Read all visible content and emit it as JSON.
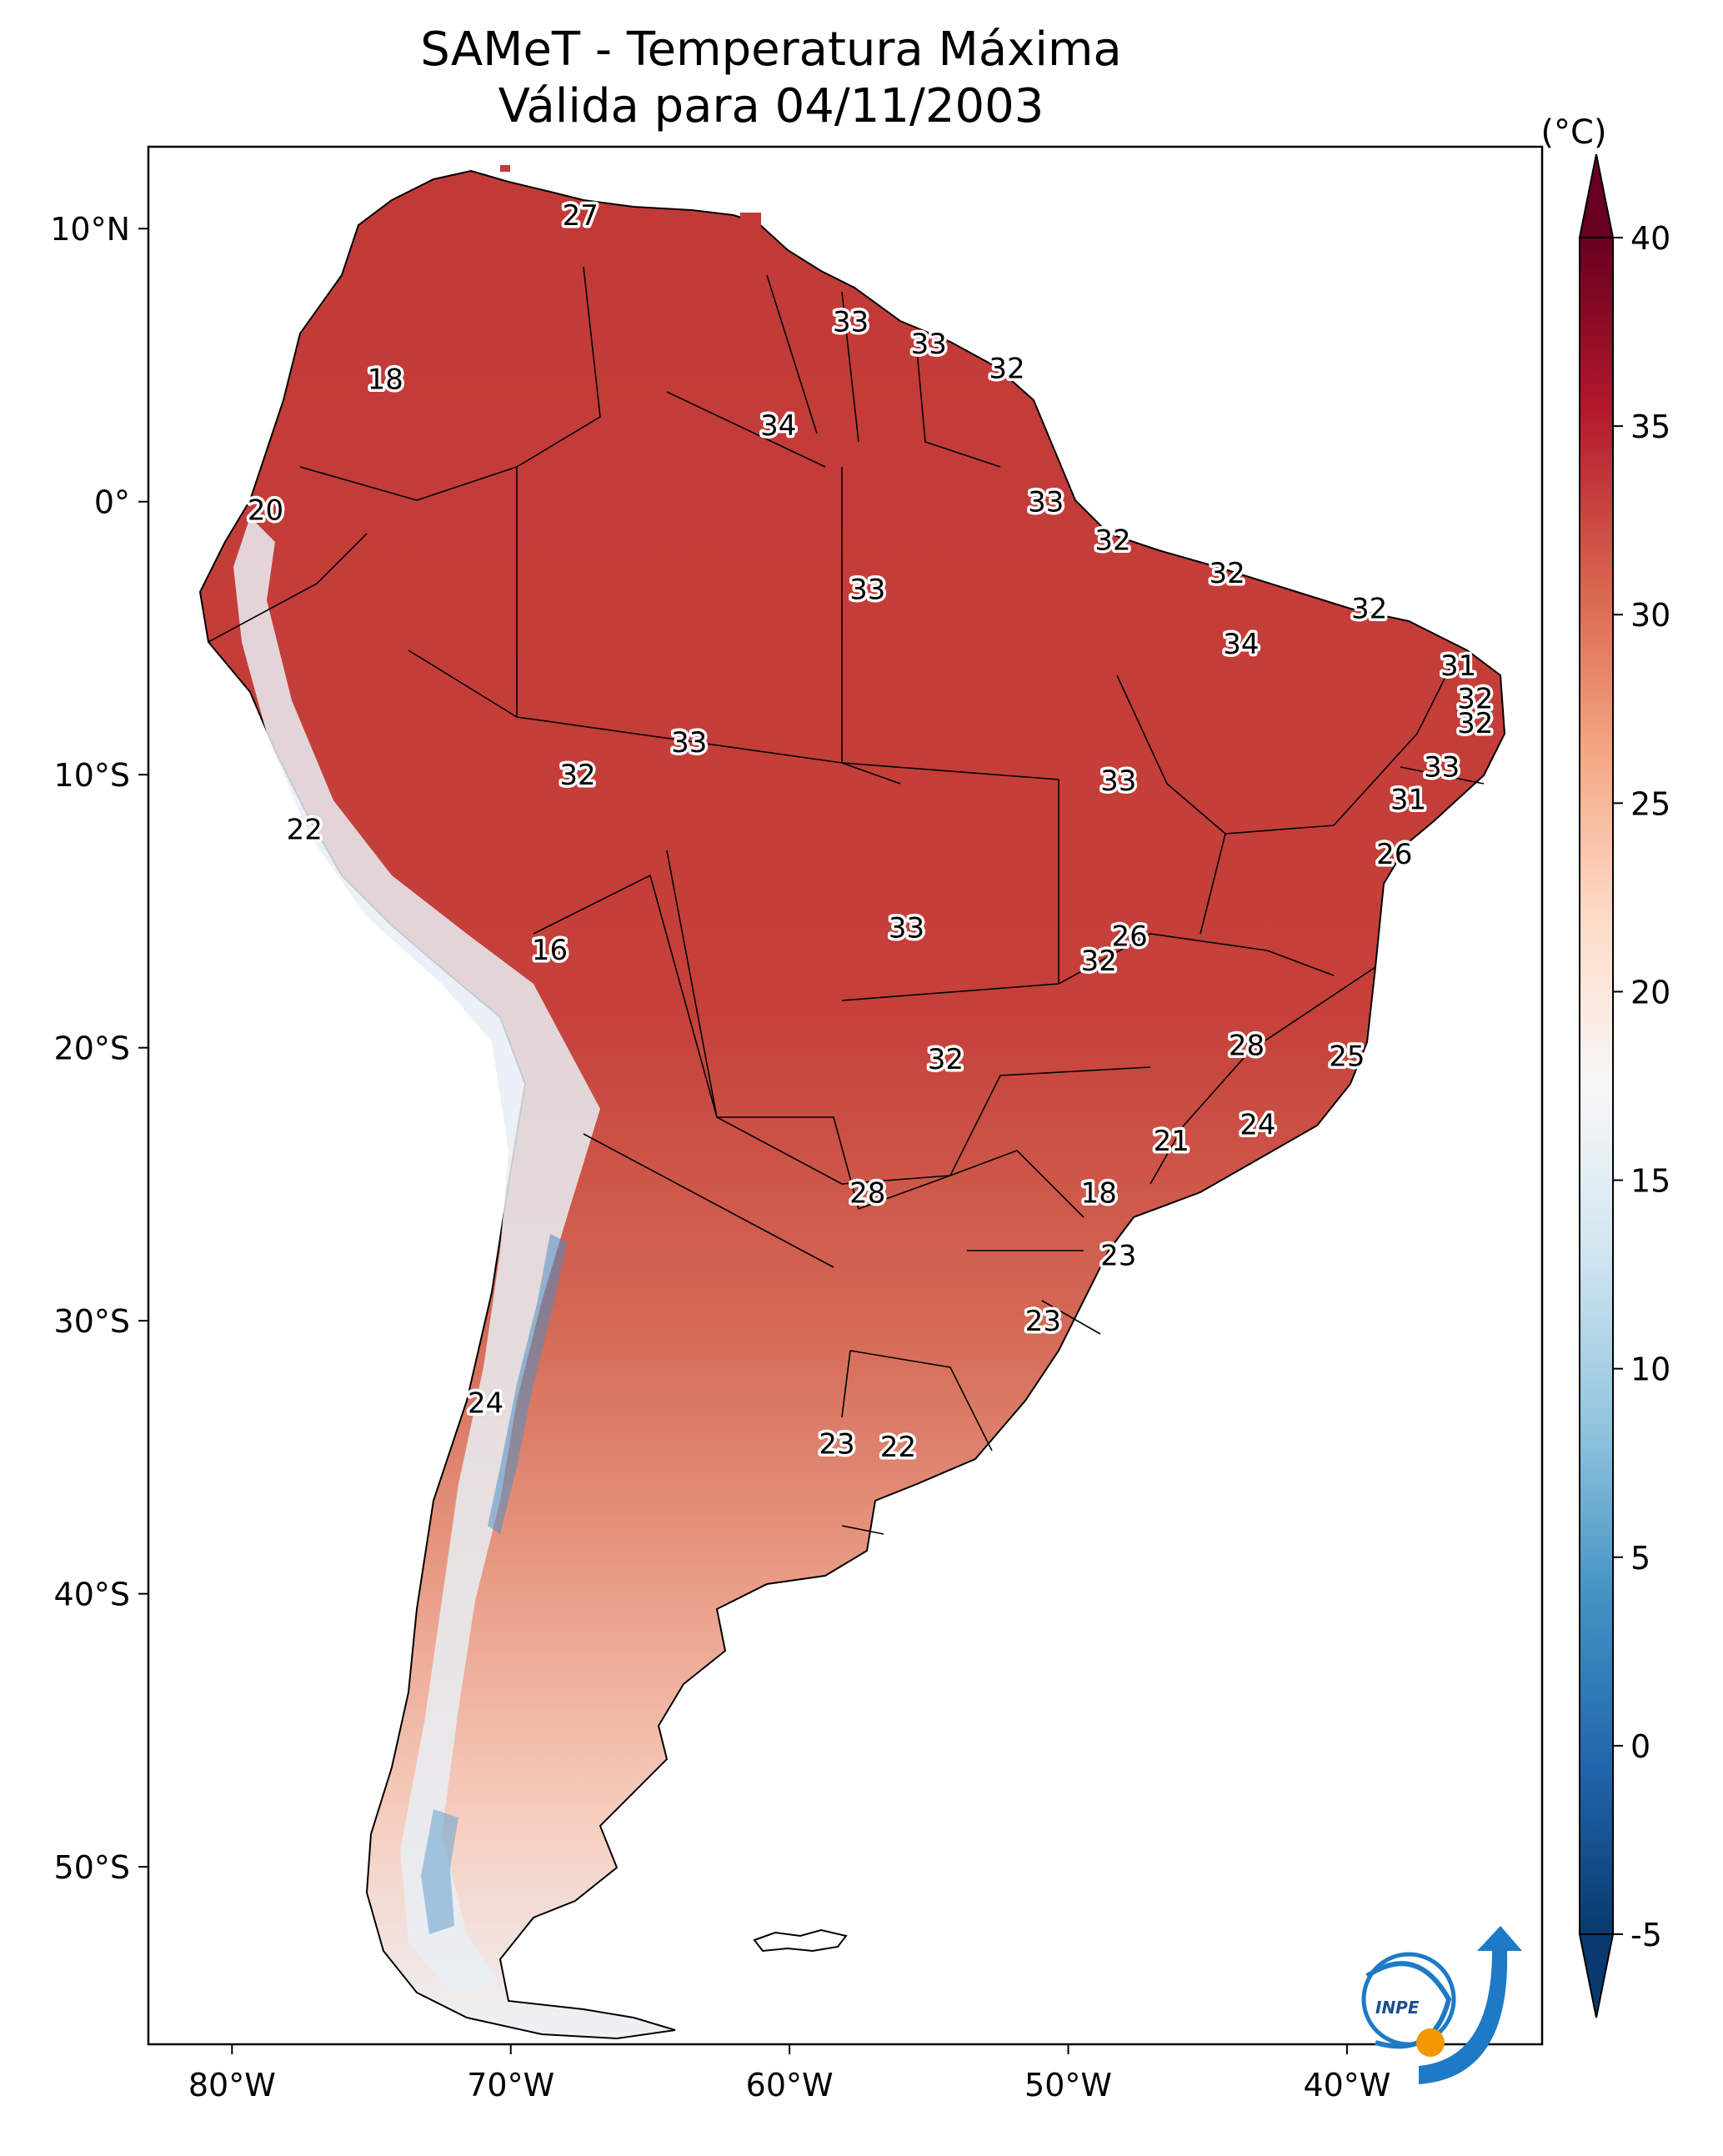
{
  "title": {
    "line1": "SAMeT - Temperatura Máxima",
    "line2": "Válida para 04/11/2003"
  },
  "map": {
    "lon_ticks": [
      "80°W",
      "70°W",
      "60°W",
      "50°W",
      "40°W"
    ],
    "lat_ticks": [
      "10°N",
      "0°",
      "10°S",
      "20°S",
      "30°S",
      "40°S",
      "50°S"
    ],
    "lon_values": [
      -80,
      -70,
      -60,
      -50,
      -40
    ],
    "lat_values": [
      10,
      0,
      -10,
      -20,
      -30,
      -40,
      -50
    ],
    "extent": {
      "lon_min": -83,
      "lon_max": -33,
      "lat_min": -56.5,
      "lat_max": 13
    }
  },
  "colorbar": {
    "unit": "(°C)",
    "ticks": [
      "40",
      "35",
      "30",
      "25",
      "20",
      "15",
      "10",
      "5",
      "0",
      "-5"
    ],
    "tick_values": [
      40,
      35,
      30,
      25,
      20,
      15,
      10,
      5,
      0,
      -5
    ],
    "range": [
      -5,
      40
    ],
    "colors": [
      "#083a6e",
      "#2166ac",
      "#4393c3",
      "#92c5de",
      "#d1e5f0",
      "#f7f7f7",
      "#fddbc7",
      "#f4a582",
      "#d6604d",
      "#b2182b",
      "#67001f"
    ]
  },
  "temperature_labels": [
    {
      "text": "27",
      "lon": -67.5,
      "lat": 10.5
    },
    {
      "text": "33",
      "lon": -57.8,
      "lat": 6.6
    },
    {
      "text": "33",
      "lon": -55.0,
      "lat": 5.8
    },
    {
      "text": "32",
      "lon": -52.2,
      "lat": 4.9
    },
    {
      "text": "18",
      "lon": -74.5,
      "lat": 4.5
    },
    {
      "text": "34",
      "lon": -60.4,
      "lat": 2.8
    },
    {
      "text": "20",
      "lon": -78.8,
      "lat": -0.3
    },
    {
      "text": "33",
      "lon": -50.8,
      "lat": 0.0
    },
    {
      "text": "32",
      "lon": -48.4,
      "lat": -1.4
    },
    {
      "text": "32",
      "lon": -44.3,
      "lat": -2.6
    },
    {
      "text": "33",
      "lon": -57.2,
      "lat": -3.2
    },
    {
      "text": "32",
      "lon": -39.2,
      "lat": -3.9
    },
    {
      "text": "34",
      "lon": -43.8,
      "lat": -5.2
    },
    {
      "text": "31",
      "lon": -36.0,
      "lat": -6.0
    },
    {
      "text": "32",
      "lon": -35.4,
      "lat": -7.2
    },
    {
      "text": "32",
      "lon": -35.4,
      "lat": -8.1
    },
    {
      "text": "33",
      "lon": -63.6,
      "lat": -8.8
    },
    {
      "text": "32",
      "lon": -67.6,
      "lat": -10.0
    },
    {
      "text": "33",
      "lon": -48.2,
      "lat": -10.2
    },
    {
      "text": "33",
      "lon": -36.6,
      "lat": -9.7
    },
    {
      "text": "31",
      "lon": -37.8,
      "lat": -10.9
    },
    {
      "text": "22",
      "lon": -77.4,
      "lat": -12.0
    },
    {
      "text": "26",
      "lon": -38.3,
      "lat": -12.9
    },
    {
      "text": "26",
      "lon": -47.8,
      "lat": -15.9
    },
    {
      "text": "33",
      "lon": -55.8,
      "lat": -15.6
    },
    {
      "text": "16",
      "lon": -68.6,
      "lat": -16.4
    },
    {
      "text": "32",
      "lon": -48.9,
      "lat": -16.8
    },
    {
      "text": "28",
      "lon": -43.6,
      "lat": -19.9
    },
    {
      "text": "25",
      "lon": -40.0,
      "lat": -20.3
    },
    {
      "text": "32",
      "lon": -54.4,
      "lat": -20.4
    },
    {
      "text": "24",
      "lon": -43.2,
      "lat": -22.8
    },
    {
      "text": "21",
      "lon": -46.3,
      "lat": -23.4
    },
    {
      "text": "28",
      "lon": -57.2,
      "lat": -25.3
    },
    {
      "text": "18",
      "lon": -48.9,
      "lat": -25.3
    },
    {
      "text": "23",
      "lon": -48.2,
      "lat": -27.6
    },
    {
      "text": "23",
      "lon": -50.9,
      "lat": -30.0
    },
    {
      "text": "24",
      "lon": -70.9,
      "lat": -33.0
    },
    {
      "text": "23",
      "lon": -58.3,
      "lat": -34.5
    },
    {
      "text": "22",
      "lon": -56.1,
      "lat": -34.6
    }
  ]
}
